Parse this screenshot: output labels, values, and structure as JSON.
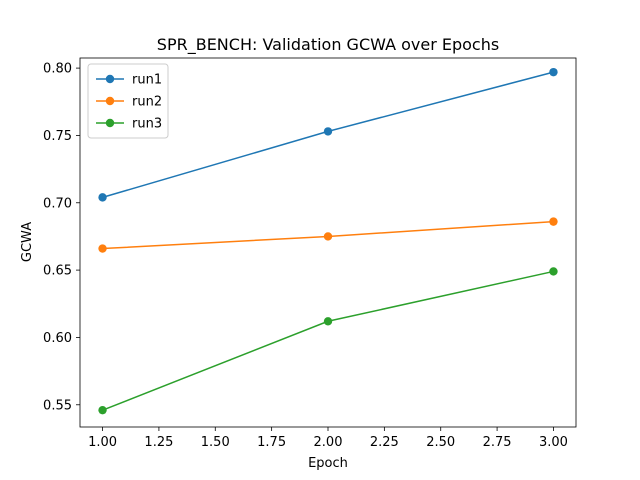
{
  "chart_data": {
    "type": "line",
    "title": "SPR_BENCH: Validation GCWA over Epochs",
    "xlabel": "Epoch",
    "ylabel": "GCWA",
    "xlim": [
      0.9,
      3.1
    ],
    "ylim": [
      0.5335,
      0.8075
    ],
    "x_ticks": [
      "1.00",
      "1.25",
      "1.50",
      "1.75",
      "2.00",
      "2.25",
      "2.50",
      "2.75",
      "3.00"
    ],
    "x_tick_values": [
      1.0,
      1.25,
      1.5,
      1.75,
      2.0,
      2.25,
      2.5,
      2.75,
      3.0
    ],
    "y_ticks": [
      "0.55",
      "0.60",
      "0.65",
      "0.70",
      "0.75",
      "0.80"
    ],
    "y_tick_values": [
      0.55,
      0.6,
      0.65,
      0.7,
      0.75,
      0.8
    ],
    "grid": false,
    "legend_position": "top-left",
    "x": [
      1,
      2,
      3
    ],
    "series": [
      {
        "name": "run1",
        "color": "#1f77b4",
        "values": [
          0.704,
          0.753,
          0.797
        ]
      },
      {
        "name": "run2",
        "color": "#ff7f0e",
        "values": [
          0.666,
          0.675,
          0.686
        ]
      },
      {
        "name": "run3",
        "color": "#2ca02c",
        "values": [
          0.546,
          0.612,
          0.649
        ]
      }
    ]
  }
}
